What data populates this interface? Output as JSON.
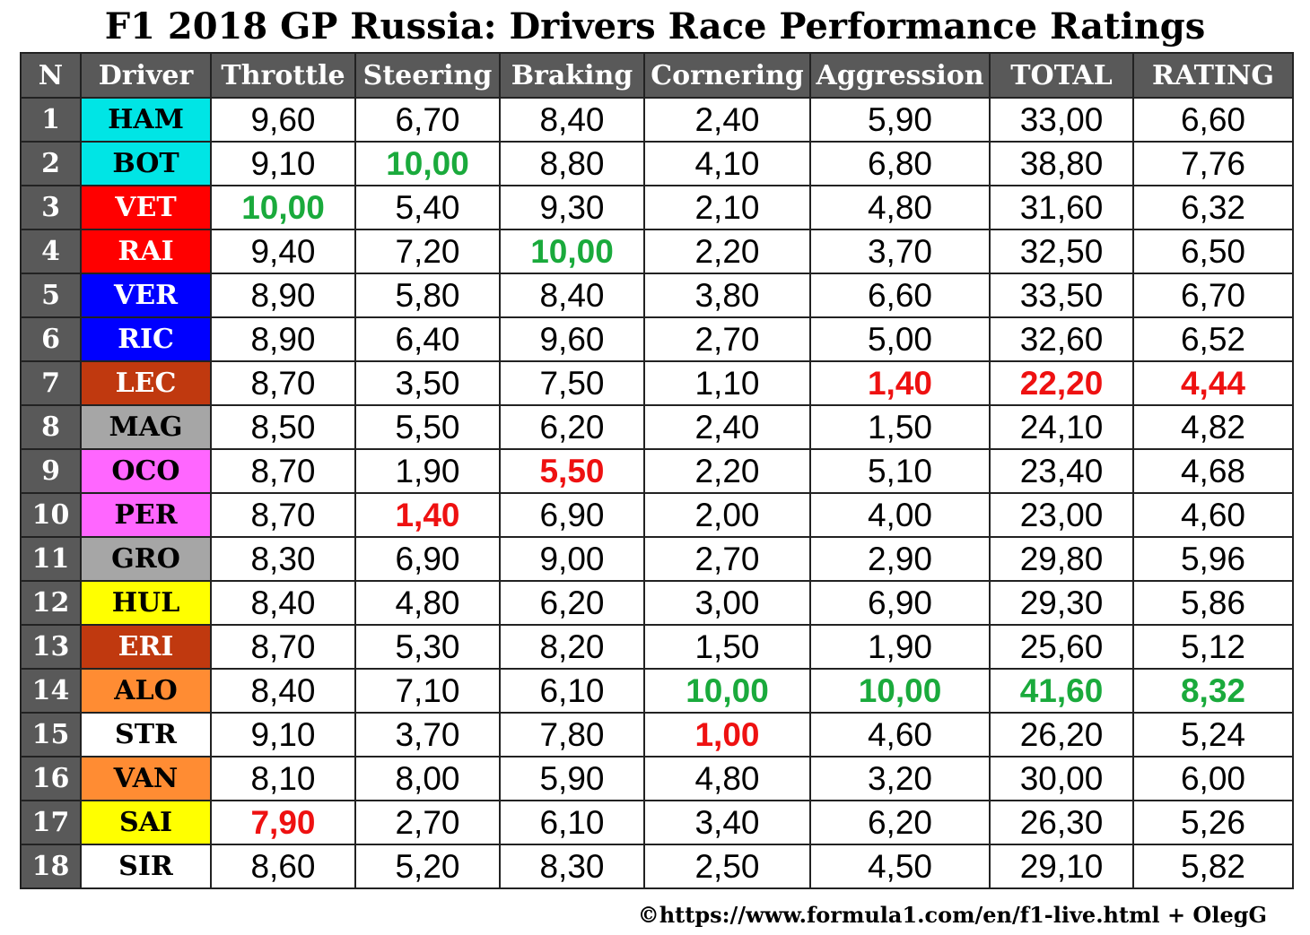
{
  "title": "F1 2018 GP Russia: Drivers Race Performance Ratings",
  "source": "©https://www.formula1.com/en/f1-live.html + OlegG",
  "colors": {
    "header_bg": "#595959",
    "best": "#1aaa3c",
    "worst": "#ee1111"
  },
  "chart_data": {
    "type": "table",
    "columns": [
      "N",
      "Driver",
      "Throttle",
      "Steering",
      "Braking",
      "Cornering",
      "Aggression",
      "TOTAL",
      "RATING"
    ],
    "rows": [
      {
        "n": "1",
        "driver": "HAM",
        "team_color": "#00e5e5",
        "text_color": "#000000",
        "values": [
          "9,60",
          "6,70",
          "8,40",
          "2,40",
          "5,90",
          "33,00",
          "6,60"
        ],
        "marks": [
          "",
          "",
          "",
          "",
          "",
          "",
          ""
        ]
      },
      {
        "n": "2",
        "driver": "BOT",
        "team_color": "#00e5e5",
        "text_color": "#000000",
        "values": [
          "9,10",
          "10,00",
          "8,80",
          "4,10",
          "6,80",
          "38,80",
          "7,76"
        ],
        "marks": [
          "",
          "best",
          "",
          "",
          "",
          "",
          ""
        ]
      },
      {
        "n": "3",
        "driver": "VET",
        "team_color": "#ff0000",
        "text_color": "#ffffff",
        "values": [
          "10,00",
          "5,40",
          "9,30",
          "2,10",
          "4,80",
          "31,60",
          "6,32"
        ],
        "marks": [
          "best",
          "",
          "",
          "",
          "",
          "",
          ""
        ]
      },
      {
        "n": "4",
        "driver": "RAI",
        "team_color": "#ff0000",
        "text_color": "#ffffff",
        "values": [
          "9,40",
          "7,20",
          "10,00",
          "2,20",
          "3,70",
          "32,50",
          "6,50"
        ],
        "marks": [
          "",
          "",
          "best",
          "",
          "",
          "",
          ""
        ]
      },
      {
        "n": "5",
        "driver": "VER",
        "team_color": "#0000ff",
        "text_color": "#ffffff",
        "values": [
          "8,90",
          "5,80",
          "8,40",
          "3,80",
          "6,60",
          "33,50",
          "6,70"
        ],
        "marks": [
          "",
          "",
          "",
          "",
          "",
          "",
          ""
        ]
      },
      {
        "n": "6",
        "driver": "RIC",
        "team_color": "#0000ff",
        "text_color": "#ffffff",
        "values": [
          "8,90",
          "6,40",
          "9,60",
          "2,70",
          "5,00",
          "32,60",
          "6,52"
        ],
        "marks": [
          "",
          "",
          "",
          "",
          "",
          "",
          ""
        ]
      },
      {
        "n": "7",
        "driver": "LEC",
        "team_color": "#c0390f",
        "text_color": "#ffffff",
        "values": [
          "8,70",
          "3,50",
          "7,50",
          "1,10",
          "1,40",
          "22,20",
          "4,44"
        ],
        "marks": [
          "",
          "",
          "",
          "",
          "worst",
          "worst",
          "worst"
        ]
      },
      {
        "n": "8",
        "driver": "MAG",
        "team_color": "#a6a6a6",
        "text_color": "#000000",
        "values": [
          "8,50",
          "5,50",
          "6,20",
          "2,40",
          "1,50",
          "24,10",
          "4,82"
        ],
        "marks": [
          "",
          "",
          "",
          "",
          "",
          "",
          ""
        ]
      },
      {
        "n": "9",
        "driver": "OCO",
        "team_color": "#ff66ff",
        "text_color": "#000000",
        "values": [
          "8,70",
          "1,90",
          "5,50",
          "2,20",
          "5,10",
          "23,40",
          "4,68"
        ],
        "marks": [
          "",
          "",
          "worst",
          "",
          "",
          "",
          ""
        ]
      },
      {
        "n": "10",
        "driver": "PER",
        "team_color": "#ff66ff",
        "text_color": "#000000",
        "values": [
          "8,70",
          "1,40",
          "6,90",
          "2,00",
          "4,00",
          "23,00",
          "4,60"
        ],
        "marks": [
          "",
          "worst",
          "",
          "",
          "",
          "",
          ""
        ]
      },
      {
        "n": "11",
        "driver": "GRO",
        "team_color": "#a6a6a6",
        "text_color": "#000000",
        "values": [
          "8,30",
          "6,90",
          "9,00",
          "2,70",
          "2,90",
          "29,80",
          "5,96"
        ],
        "marks": [
          "",
          "",
          "",
          "",
          "",
          "",
          ""
        ]
      },
      {
        "n": "12",
        "driver": "HUL",
        "team_color": "#ffff00",
        "text_color": "#000000",
        "values": [
          "8,40",
          "4,80",
          "6,20",
          "3,00",
          "6,90",
          "29,30",
          "5,86"
        ],
        "marks": [
          "",
          "",
          "",
          "",
          "",
          "",
          ""
        ]
      },
      {
        "n": "13",
        "driver": "ERI",
        "team_color": "#c0390f",
        "text_color": "#ffffff",
        "values": [
          "8,70",
          "5,30",
          "8,20",
          "1,50",
          "1,90",
          "25,60",
          "5,12"
        ],
        "marks": [
          "",
          "",
          "",
          "",
          "",
          "",
          ""
        ]
      },
      {
        "n": "14",
        "driver": "ALO",
        "team_color": "#ff8c33",
        "text_color": "#000000",
        "values": [
          "8,40",
          "7,10",
          "6,10",
          "10,00",
          "10,00",
          "41,60",
          "8,32"
        ],
        "marks": [
          "",
          "",
          "",
          "best",
          "best",
          "best",
          "best"
        ]
      },
      {
        "n": "15",
        "driver": "STR",
        "team_color": "#ffffff",
        "text_color": "#000000",
        "values": [
          "9,10",
          "3,70",
          "7,80",
          "1,00",
          "4,60",
          "26,20",
          "5,24"
        ],
        "marks": [
          "",
          "",
          "",
          "worst",
          "",
          "",
          ""
        ]
      },
      {
        "n": "16",
        "driver": "VAN",
        "team_color": "#ff8c33",
        "text_color": "#000000",
        "values": [
          "8,10",
          "8,00",
          "5,90",
          "4,80",
          "3,20",
          "30,00",
          "6,00"
        ],
        "marks": [
          "",
          "",
          "",
          "",
          "",
          "",
          ""
        ]
      },
      {
        "n": "17",
        "driver": "SAI",
        "team_color": "#ffff00",
        "text_color": "#000000",
        "values": [
          "7,90",
          "2,70",
          "6,10",
          "3,40",
          "6,20",
          "26,30",
          "5,26"
        ],
        "marks": [
          "worst",
          "",
          "",
          "",
          "",
          "",
          ""
        ]
      },
      {
        "n": "18",
        "driver": "SIR",
        "team_color": "#ffffff",
        "text_color": "#000000",
        "values": [
          "8,60",
          "5,20",
          "8,30",
          "2,50",
          "4,50",
          "29,10",
          "5,82"
        ],
        "marks": [
          "",
          "",
          "",
          "",
          "",
          "",
          ""
        ]
      }
    ]
  }
}
